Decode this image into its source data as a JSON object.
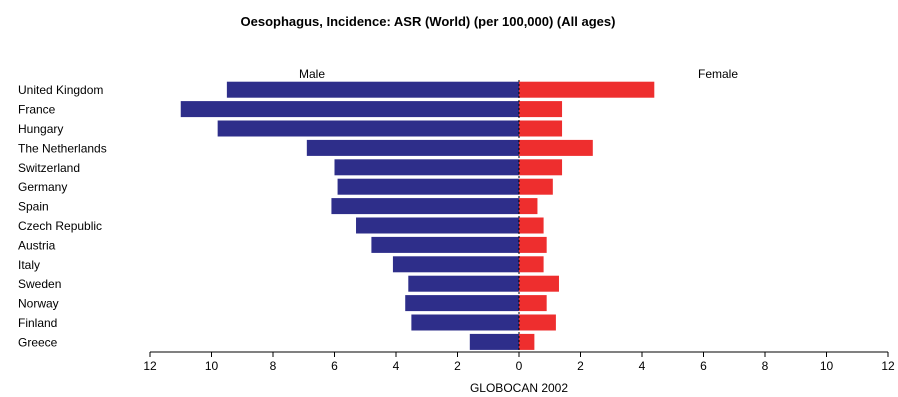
{
  "chart_data": {
    "type": "bar",
    "title": "Oesophagus, Incidence: ASR (World) (per 100,000) (All ages)",
    "categories": [
      "United Kingdom",
      "France",
      "Hungary",
      "The Netherlands",
      "Switzerland",
      "Germany",
      "Spain",
      "Czech Republic",
      "Austria",
      "Italy",
      "Sweden",
      "Norway",
      "Finland",
      "Greece"
    ],
    "series": [
      {
        "name": "Male",
        "color": "#2e2e8a",
        "values": [
          9.5,
          11.0,
          9.8,
          6.9,
          6.0,
          5.9,
          6.1,
          5.3,
          4.8,
          4.1,
          3.6,
          3.7,
          3.5,
          1.6
        ]
      },
      {
        "name": "Female",
        "color": "#ee2e2e",
        "values": [
          4.4,
          1.4,
          1.4,
          2.4,
          1.4,
          1.1,
          0.6,
          0.8,
          0.9,
          0.8,
          1.3,
          0.9,
          1.2,
          0.5
        ]
      }
    ],
    "xlim": [
      -12,
      12
    ],
    "xticks": [
      "12",
      "10",
      "8",
      "6",
      "4",
      "2",
      "0",
      "2",
      "4",
      "6",
      "8",
      "10",
      "12"
    ],
    "xlabel": "GLOBOCAN 2002",
    "grid": false
  }
}
